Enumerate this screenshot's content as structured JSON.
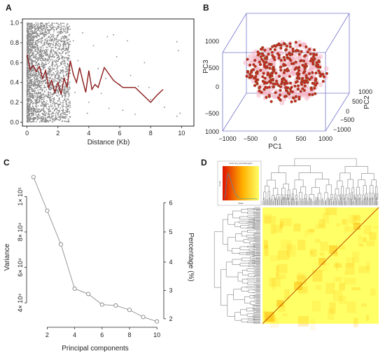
{
  "panels": {
    "a": "A",
    "b": "B",
    "c": "C",
    "d": "D"
  },
  "chart_data": [
    {
      "type": "scatter",
      "panel": "A",
      "xlabel": "Distance (Kb)",
      "ylabel": "",
      "xlim": [
        -0.3,
        10.8
      ],
      "ylim": [
        -0.04,
        1.04
      ],
      "x_ticks": [
        "0",
        "2",
        "4",
        "6",
        "8",
        "10"
      ],
      "y_ticks": [
        "0.0",
        "0.2",
        "0.4",
        "0.6",
        "0.8",
        "1.0"
      ],
      "point_color": "#8c8c8c",
      "line_color": "#8b1a1a",
      "sparse_points": [
        {
          "x": 3.0,
          "y": 0.82
        },
        {
          "x": 3.6,
          "y": 0.9
        },
        {
          "x": 4.3,
          "y": 0.77
        },
        {
          "x": 5.2,
          "y": 0.86
        },
        {
          "x": 5.6,
          "y": 0.88
        },
        {
          "x": 6.5,
          "y": 0.82
        },
        {
          "x": 9.7,
          "y": 0.81
        },
        {
          "x": 9.8,
          "y": 0.72
        },
        {
          "x": 3.3,
          "y": 0.62
        },
        {
          "x": 5.1,
          "y": 0.44
        },
        {
          "x": 6.0,
          "y": 0.38
        },
        {
          "x": 7.2,
          "y": 0.36
        },
        {
          "x": 7.9,
          "y": 0.35
        },
        {
          "x": 3.1,
          "y": 0.3
        },
        {
          "x": 4.0,
          "y": 0.2
        },
        {
          "x": 5.3,
          "y": 0.14
        },
        {
          "x": 6.2,
          "y": 0.12
        },
        {
          "x": 7.0,
          "y": 0.08
        },
        {
          "x": 9.7,
          "y": 0.06
        },
        {
          "x": 9.9,
          "y": 0.09
        },
        {
          "x": 8.0,
          "y": 0.23
        },
        {
          "x": 4.6,
          "y": 0.54
        },
        {
          "x": 5.8,
          "y": 0.66
        },
        {
          "x": 3.9,
          "y": 0.09
        },
        {
          "x": 8.9,
          "y": 0.15
        },
        {
          "x": 6.7,
          "y": 0.47
        },
        {
          "x": 2.6,
          "y": 0.95
        },
        {
          "x": 4.8,
          "y": 0.29
        },
        {
          "x": 7.6,
          "y": 0.6
        },
        {
          "x": 2.8,
          "y": 0.05
        }
      ],
      "trend_line": {
        "x": [
          0.0,
          0.2,
          0.4,
          0.6,
          0.8,
          1.0,
          1.2,
          1.4,
          1.6,
          1.8,
          2.0,
          2.2,
          2.4,
          2.6,
          2.8,
          3.0,
          3.2,
          3.4,
          3.6,
          3.8,
          4.0,
          4.2,
          4.4,
          4.6,
          4.8,
          5.0,
          5.6,
          6.2,
          7.0,
          7.6,
          8.0,
          8.4,
          8.8
        ],
        "y": [
          0.68,
          0.53,
          0.57,
          0.51,
          0.56,
          0.44,
          0.52,
          0.35,
          0.42,
          0.3,
          0.4,
          0.28,
          0.44,
          0.35,
          0.62,
          0.48,
          0.4,
          0.55,
          0.42,
          0.3,
          0.52,
          0.33,
          0.38,
          0.35,
          0.45,
          0.55,
          0.42,
          0.35,
          0.35,
          0.26,
          0.2,
          0.27,
          0.33
        ]
      }
    },
    {
      "type": "scatter",
      "panel": "B",
      "subtype": "3d",
      "xlabel": "PC1",
      "ylabel": "PC2",
      "zlabel": "PC3",
      "x_ticks": [
        "−1000",
        "−500",
        "0",
        "500",
        "1000"
      ],
      "y_ticks": [
        "−1000",
        "−500",
        "0",
        "500",
        "1000"
      ],
      "z_ticks": [
        "−500",
        "0",
        "500",
        "1000"
      ],
      "z_tick_lower": "1000",
      "point_color": "#cc2222",
      "point_edge_color": "#6b6b2a",
      "halo_color": "#f4b6c8",
      "box_color": "#7777cc"
    },
    {
      "type": "line",
      "panel": "C",
      "xlabel": "Principal components",
      "ylabel": "Variance",
      "y2label": "Percentage (%)",
      "x": [
        1,
        2,
        3,
        4,
        5,
        6,
        7,
        8,
        9,
        10
      ],
      "values": [
        111000,
        92000,
        73000,
        48000,
        45000,
        39000,
        38500,
        36000,
        32000,
        29500
      ],
      "xlim": [
        0.6,
        10.4
      ],
      "ylim": [
        27000,
        114000
      ],
      "x_ticks": [
        "2",
        "4",
        "6",
        "8",
        "10"
      ],
      "y_ticks": [
        {
          "label": "4× 10⁴",
          "value": 40000
        },
        {
          "label": "6× 10⁴",
          "value": 60000
        },
        {
          "label": "8× 10⁴",
          "value": 80000
        },
        {
          "label": "1× 10⁵",
          "value": 100000
        }
      ],
      "y2_ticks": [
        {
          "label": "2",
          "value": 31000
        },
        {
          "label": "3",
          "value": 47000
        },
        {
          "label": "4",
          "value": 63000
        },
        {
          "label": "5",
          "value": 80000
        },
        {
          "label": "6",
          "value": 96500
        }
      ],
      "line_color": "#999999"
    },
    {
      "type": "heatmap",
      "panel": "D",
      "color_key_title": "Color Key and Histogram",
      "color_key_ylabel": "Count",
      "color_key_xlabel": "Value",
      "color_low": "#ffff66",
      "color_mid": "#ffb000",
      "color_high": "#dd1100",
      "diagonal_color": "#c05000",
      "dendrogram_color": "#808080"
    }
  ]
}
